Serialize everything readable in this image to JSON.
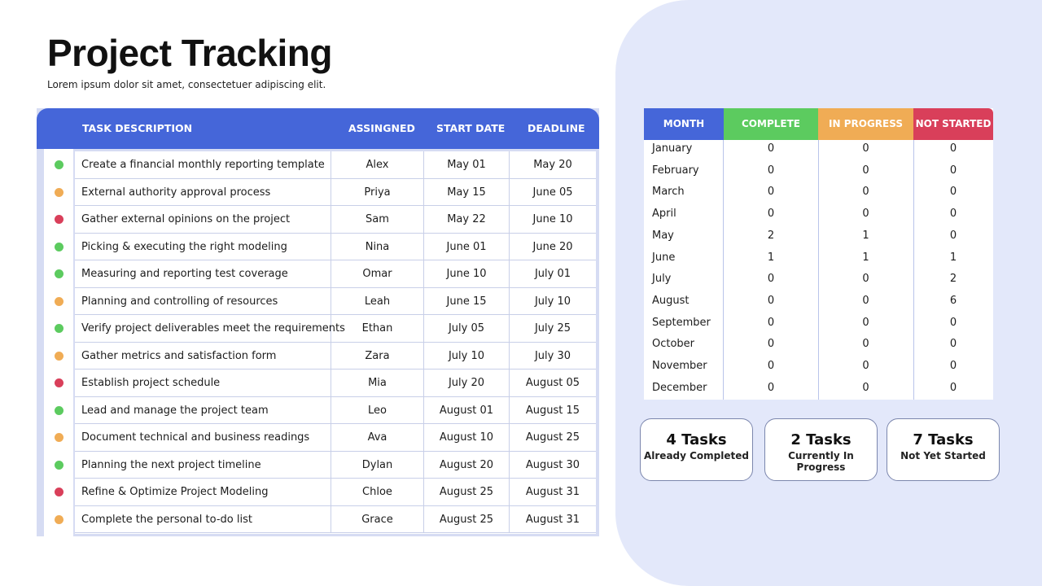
{
  "page": {
    "title": "Project Tracking",
    "subtitle": "Lorem ipsum dolor sit amet, consectetuer adipiscing elit."
  },
  "colors": {
    "header_blue": "#4566d9",
    "complete": "#5ccb5f",
    "in_progress": "#f0ac55",
    "not_started": "#d93f5a"
  },
  "task_table": {
    "headers": [
      "TASK DESCRIPTION",
      "ASSINGNED",
      "START DATE",
      "DEADLINE"
    ],
    "rows": [
      {
        "status": "complete",
        "task": "Create a financial monthly reporting template",
        "assigned": "Alex",
        "start": "May 01",
        "deadline": "May 20"
      },
      {
        "status": "in_progress",
        "task": "External authority approval process",
        "assigned": "Priya",
        "start": "May 15",
        "deadline": "June 05"
      },
      {
        "status": "not_started",
        "task": "Gather external opinions on the project",
        "assigned": "Sam",
        "start": "May 22",
        "deadline": "June 10"
      },
      {
        "status": "complete",
        "task": "Picking & executing the right modeling",
        "assigned": "Nina",
        "start": "June 01",
        "deadline": "June 20"
      },
      {
        "status": "complete",
        "task": "Measuring and reporting test coverage",
        "assigned": "Omar",
        "start": "June 10",
        "deadline": "July 01"
      },
      {
        "status": "in_progress",
        "task": "Planning and controlling of resources",
        "assigned": "Leah",
        "start": "June 15",
        "deadline": "July 10"
      },
      {
        "status": "complete",
        "task": "Verify project deliverables meet the requirements",
        "assigned": "Ethan",
        "start": "July 05",
        "deadline": "July 25"
      },
      {
        "status": "in_progress",
        "task": "Gather metrics and satisfaction form",
        "assigned": "Zara",
        "start": "July 10",
        "deadline": "July 30"
      },
      {
        "status": "not_started",
        "task": "Establish project schedule",
        "assigned": "Mia",
        "start": "July 20",
        "deadline": "August 05"
      },
      {
        "status": "complete",
        "task": "Lead and manage the project team",
        "assigned": "Leo",
        "start": "August 01",
        "deadline": "August 15"
      },
      {
        "status": "in_progress",
        "task": "Document technical and business readings",
        "assigned": "Ava",
        "start": "August 10",
        "deadline": "August 25"
      },
      {
        "status": "complete",
        "task": "Planning the next project timeline",
        "assigned": "Dylan",
        "start": "August 20",
        "deadline": "August 30"
      },
      {
        "status": "not_started",
        "task": "Refine & Optimize Project Modeling",
        "assigned": "Chloe",
        "start": "August 25",
        "deadline": "August 31"
      },
      {
        "status": "in_progress",
        "task": "Complete the personal to-do list",
        "assigned": "Grace",
        "start": "August 25",
        "deadline": "August 31"
      }
    ]
  },
  "month_table": {
    "headers": [
      "MONTH",
      "COMPLETE",
      "IN PROGRESS",
      "NOT STARTED"
    ],
    "rows": [
      {
        "month": "January",
        "complete": "0",
        "in_progress": "0",
        "not_started": "0"
      },
      {
        "month": "February",
        "complete": "0",
        "in_progress": "0",
        "not_started": "0"
      },
      {
        "month": "March",
        "complete": "0",
        "in_progress": "0",
        "not_started": "0"
      },
      {
        "month": "April",
        "complete": "0",
        "in_progress": "0",
        "not_started": "0"
      },
      {
        "month": "May",
        "complete": "2",
        "in_progress": "1",
        "not_started": "0"
      },
      {
        "month": "June",
        "complete": "1",
        "in_progress": "1",
        "not_started": "1"
      },
      {
        "month": "July",
        "complete": "0",
        "in_progress": "0",
        "not_started": "2"
      },
      {
        "month": "August",
        "complete": "0",
        "in_progress": "0",
        "not_started": "6"
      },
      {
        "month": "September",
        "complete": "0",
        "in_progress": "0",
        "not_started": "0"
      },
      {
        "month": "October",
        "complete": "0",
        "in_progress": "0",
        "not_started": "0"
      },
      {
        "month": "November",
        "complete": "0",
        "in_progress": "0",
        "not_started": "0"
      },
      {
        "month": "December",
        "complete": "0",
        "in_progress": "0",
        "not_started": "0"
      }
    ]
  },
  "summary": [
    {
      "count": "4 Tasks",
      "label": "Already Completed"
    },
    {
      "count": "2 Tasks",
      "label": "Currently In Progress"
    },
    {
      "count": "7 Tasks",
      "label": "Not Yet Started"
    }
  ]
}
